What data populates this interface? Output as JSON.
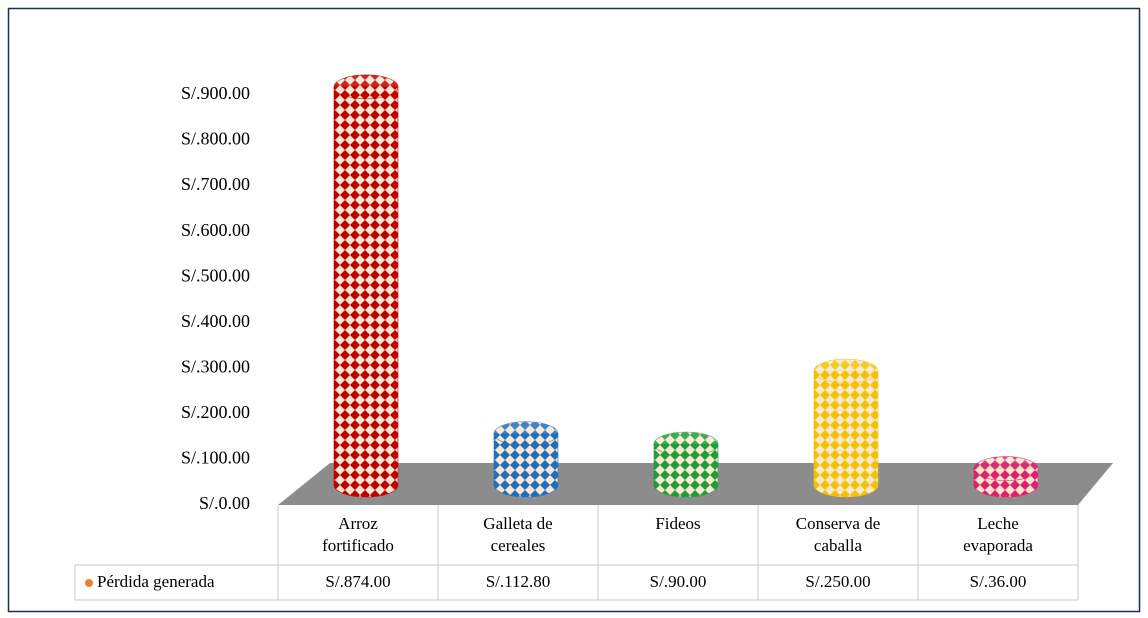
{
  "chart_data": {
    "type": "bar3d",
    "categories": [
      "Arroz fortificado",
      "Galleta de cereales",
      "Fideos",
      "Conserva de caballa",
      "Leche evaporada"
    ],
    "series": [
      {
        "name": "Pérdida generada",
        "color": "#ed7d31",
        "values": [
          874,
          112.8,
          90,
          250,
          36
        ],
        "value_labels": [
          "S/.874.00",
          "S/.112.80",
          "S/.90.00",
          "S/.250.00",
          "S/.36.00"
        ]
      }
    ],
    "colors": [
      "#c00000",
      "#1f6fc0",
      "#1f9e3a",
      "#f2c200",
      "#e0206a"
    ],
    "ylim": [
      0,
      900
    ],
    "yticks": [
      {
        "value": 0,
        "label": "S/.0.00"
      },
      {
        "value": 100,
        "label": "S/.100.00"
      },
      {
        "value": 200,
        "label": "S/.200.00"
      },
      {
        "value": 300,
        "label": "S/.300.00"
      },
      {
        "value": 400,
        "label": "S/.400.00"
      },
      {
        "value": 500,
        "label": "S/.500.00"
      },
      {
        "value": 600,
        "label": "S/.600.00"
      },
      {
        "value": 700,
        "label": "S/.700.00"
      },
      {
        "value": 800,
        "label": "S/.800.00"
      },
      {
        "value": 900,
        "label": "S/.900.00"
      }
    ],
    "legend": "table"
  }
}
